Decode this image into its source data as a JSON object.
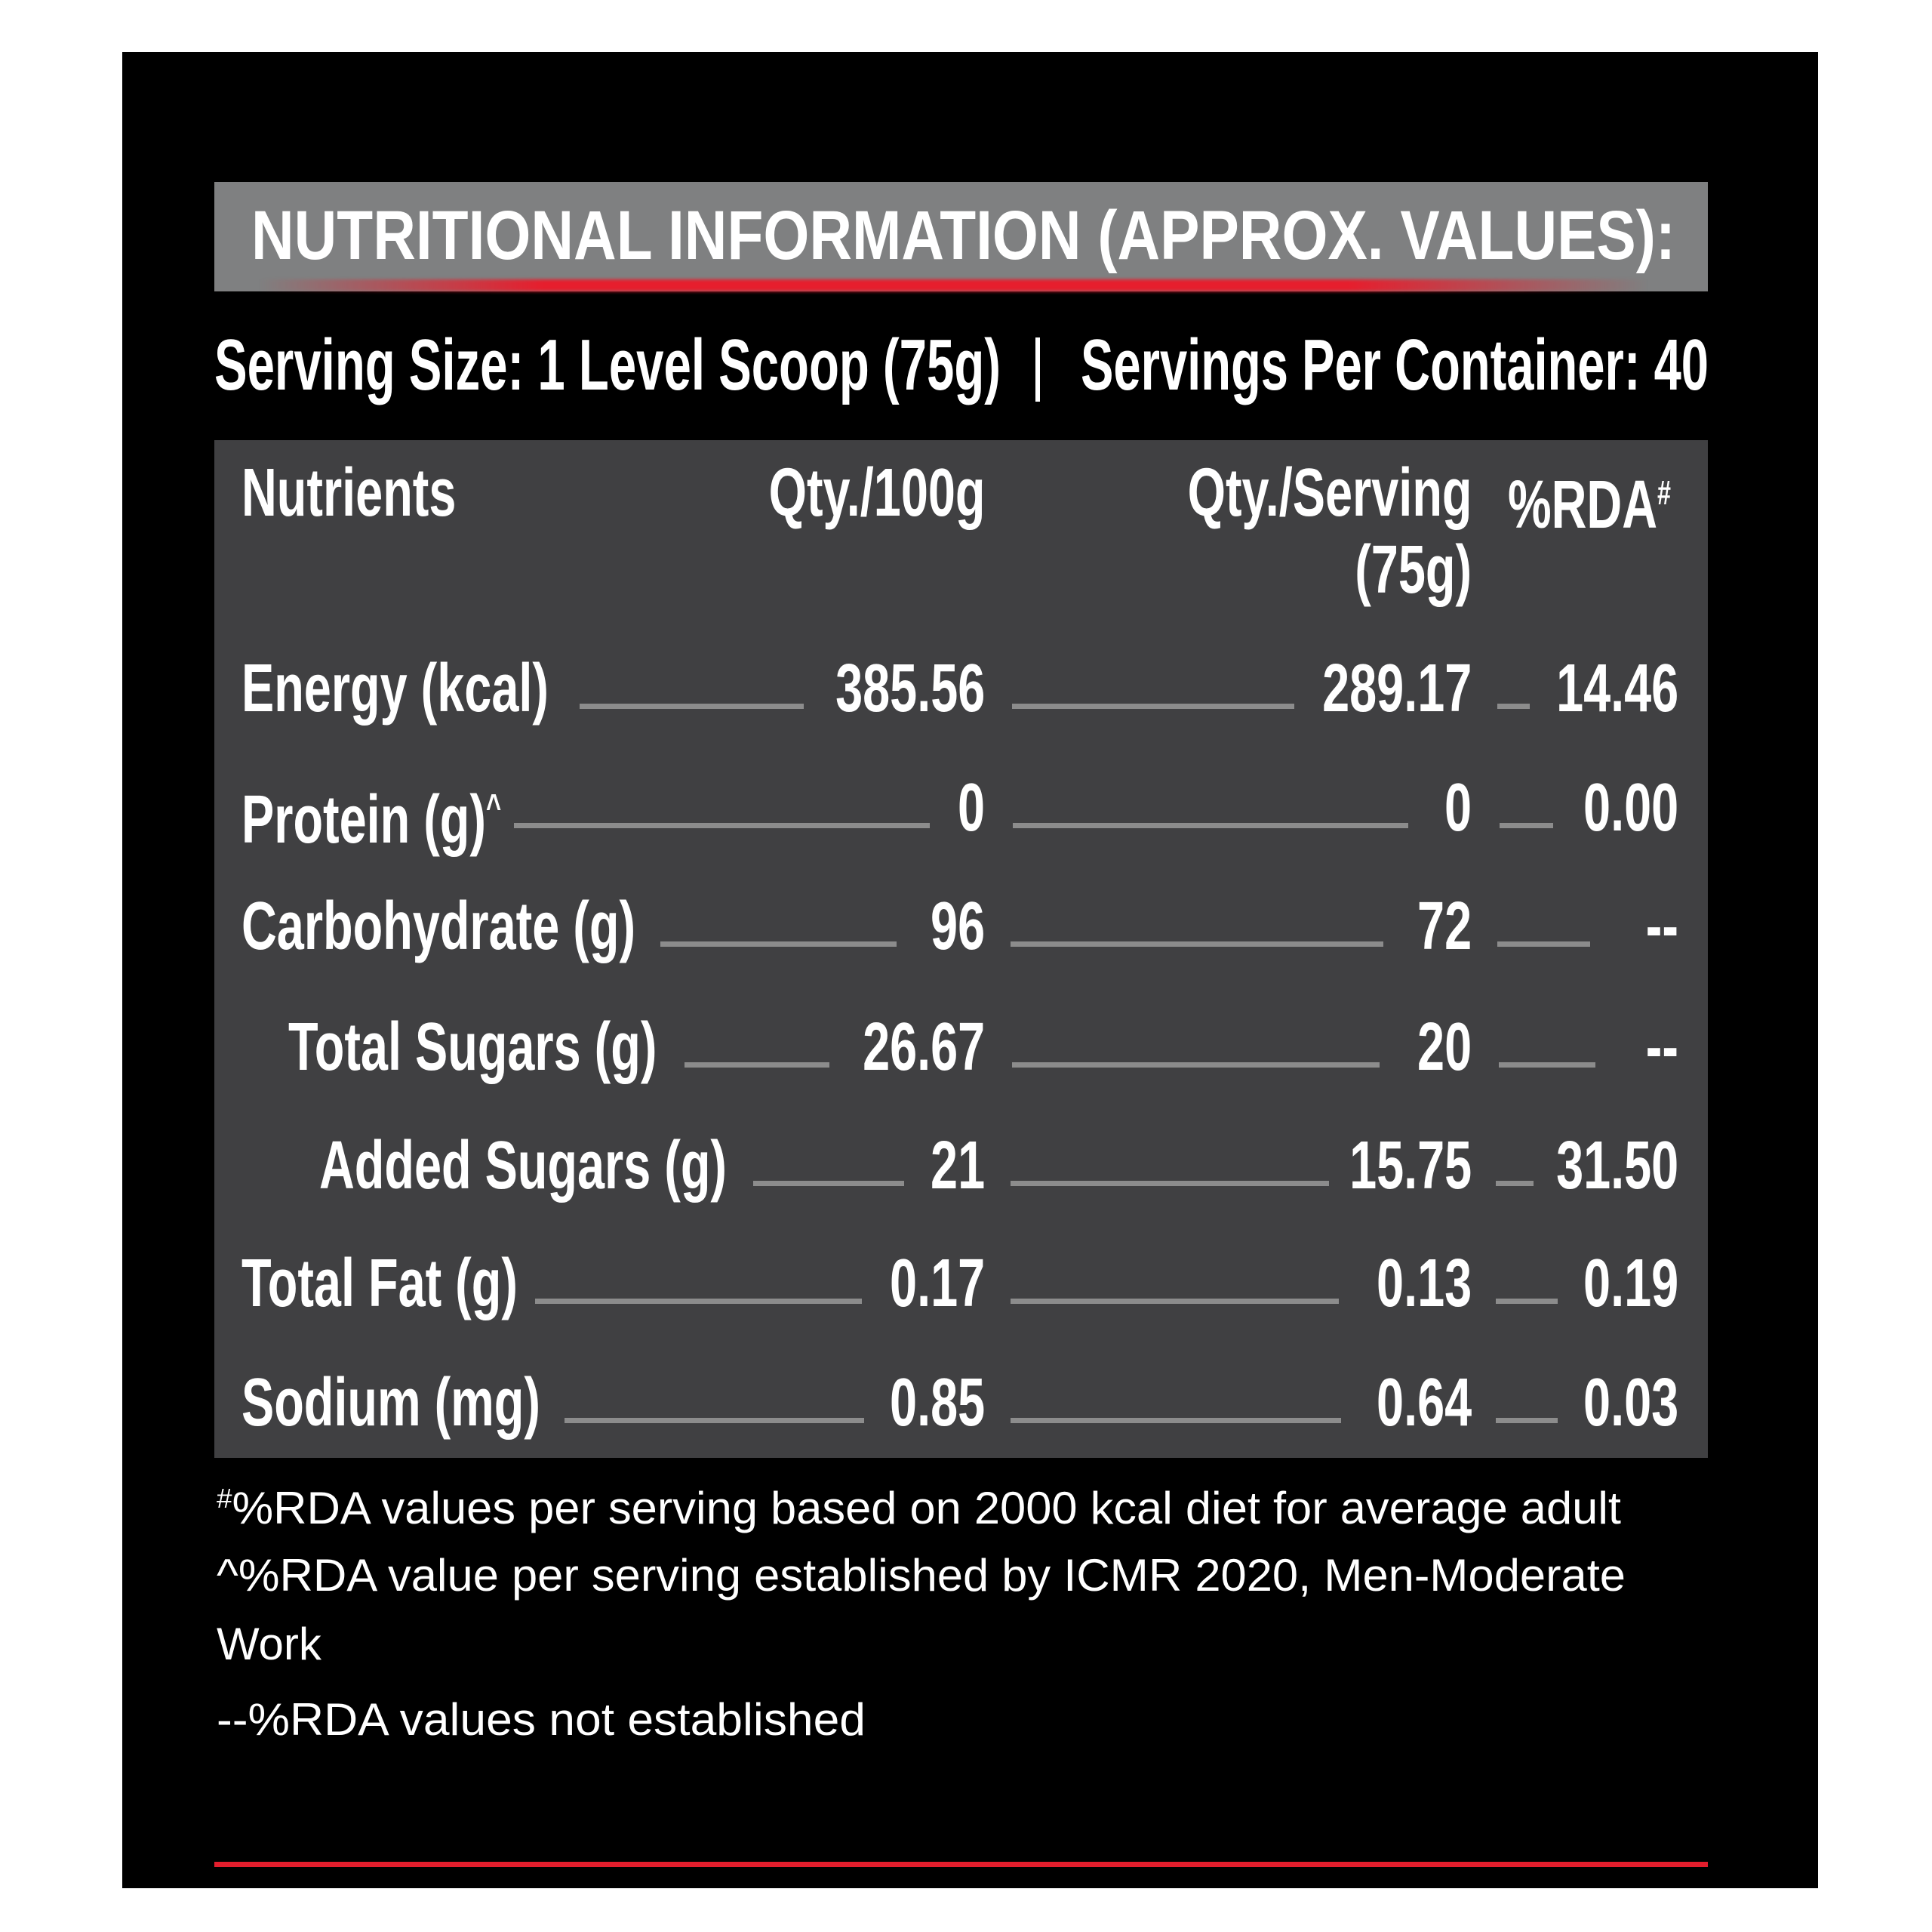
{
  "title": "NUTRITIONAL INFORMATION (APPROX. VALUES):",
  "serving": {
    "size": "Serving Size: 1 Level Scoop (75g)",
    "separator": "|",
    "per_container": "Servings Per Container: 40"
  },
  "table": {
    "headers": {
      "nutrients": "Nutrients",
      "qty_100g": "Qty./100g",
      "qty_serving": "Qty./Serving",
      "qty_serving_sub": "(75g)",
      "rda": "%RDA",
      "rda_mark": "#"
    },
    "rows": [
      {
        "name": "Energy (kcal)",
        "mark": "",
        "per100": "385.56",
        "perServing": "289.17",
        "rda": "14.46"
      },
      {
        "name": "Protein (g)",
        "mark": "^",
        "per100": "0",
        "perServing": "0",
        "rda": "0.00"
      },
      {
        "name": "Carbohydrate (g)",
        "mark": "",
        "per100": "96",
        "perServing": "72",
        "rda": "--"
      },
      {
        "name": "Total Sugars (g)",
        "mark": "",
        "per100": "26.67",
        "perServing": "20",
        "rda": "--"
      },
      {
        "name": "Added Sugars (g)",
        "mark": "",
        "per100": "21",
        "perServing": "15.75",
        "rda": "31.50"
      },
      {
        "name": "Total Fat (g)",
        "mark": "",
        "per100": "0.17",
        "perServing": "0.13",
        "rda": "0.19"
      },
      {
        "name": "Sodium (mg)",
        "mark": "",
        "per100": "0.85",
        "perServing": "0.64",
        "rda": "0.03"
      }
    ]
  },
  "footnotes": {
    "hash_mark": "#",
    "note1": "%RDA values per serving based on 2000 kcal diet for average adult",
    "note2_line1": "^%RDA value per serving established by ICMR 2020, Men-Moderate",
    "note2_line2": "Work",
    "note3": "--%RDA values not established"
  },
  "colors": {
    "background": "#000000",
    "title_bar": "#7f8081",
    "table_bg": "#404042",
    "accent_red": "#e31e2d",
    "leader": "#8c8c8c"
  }
}
